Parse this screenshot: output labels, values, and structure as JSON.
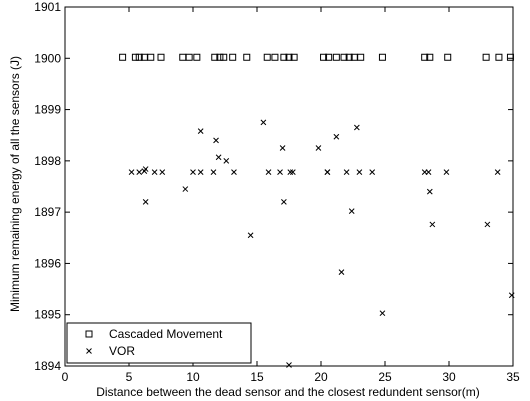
{
  "chart_data": {
    "type": "scatter",
    "xlabel": "Distance between the dead sensor and the closest redundent sensor(m)",
    "ylabel": "Minimum remaining energy of all the sensors (J)",
    "xlim": [
      0,
      35
    ],
    "ylim": [
      1894,
      1901
    ],
    "x_ticks": [
      "0",
      "5",
      "10",
      "15",
      "20",
      "25",
      "30",
      "35"
    ],
    "y_ticks": [
      "1894",
      "1895",
      "1896",
      "1897",
      "1898",
      "1899",
      "1900",
      "1901"
    ],
    "grid": false,
    "legend_position": "bottom-left",
    "series": [
      {
        "name": "Cascaded Movement",
        "marker": "square",
        "color": "#000000",
        "points": [
          [
            4.5,
            1900.02
          ],
          [
            5.5,
            1900.02
          ],
          [
            5.8,
            1900.02
          ],
          [
            6.2,
            1900.02
          ],
          [
            6.7,
            1900.02
          ],
          [
            7.5,
            1900.02
          ],
          [
            9.2,
            1900.02
          ],
          [
            9.7,
            1900.02
          ],
          [
            10.3,
            1900.02
          ],
          [
            11.7,
            1900.02
          ],
          [
            12.1,
            1900.02
          ],
          [
            12.4,
            1900.02
          ],
          [
            13.1,
            1900.02
          ],
          [
            14.2,
            1900.02
          ],
          [
            15.8,
            1900.02
          ],
          [
            16.4,
            1900.02
          ],
          [
            17.1,
            1900.02
          ],
          [
            17.5,
            1900.02
          ],
          [
            17.9,
            1900.02
          ],
          [
            20.2,
            1900.02
          ],
          [
            20.6,
            1900.02
          ],
          [
            21.2,
            1900.02
          ],
          [
            21.8,
            1900.02
          ],
          [
            22.2,
            1900.02
          ],
          [
            22.6,
            1900.02
          ],
          [
            23.1,
            1900.02
          ],
          [
            24.8,
            1900.02
          ],
          [
            28.1,
            1900.02
          ],
          [
            28.5,
            1900.02
          ],
          [
            29.9,
            1900.02
          ],
          [
            32.9,
            1900.02
          ],
          [
            33.9,
            1900.02
          ],
          [
            34.8,
            1900.02
          ]
        ]
      },
      {
        "name": "VOR",
        "marker": "x",
        "color": "#000000",
        "points": [
          [
            5.2,
            1897.78
          ],
          [
            5.8,
            1897.78
          ],
          [
            6.2,
            1897.8
          ],
          [
            6.3,
            1897.84
          ],
          [
            6.3,
            1897.2
          ],
          [
            7.0,
            1897.78
          ],
          [
            7.6,
            1897.78
          ],
          [
            9.4,
            1897.45
          ],
          [
            10.0,
            1897.78
          ],
          [
            10.6,
            1898.58
          ],
          [
            10.6,
            1897.78
          ],
          [
            11.6,
            1897.78
          ],
          [
            11.8,
            1898.4
          ],
          [
            12.0,
            1898.07
          ],
          [
            12.6,
            1898.0
          ],
          [
            13.2,
            1897.78
          ],
          [
            14.5,
            1896.55
          ],
          [
            15.5,
            1898.75
          ],
          [
            15.9,
            1897.78
          ],
          [
            16.8,
            1897.78
          ],
          [
            17.0,
            1898.25
          ],
          [
            17.1,
            1897.2
          ],
          [
            17.5,
            1894.02
          ],
          [
            17.6,
            1897.78
          ],
          [
            17.8,
            1897.78
          ],
          [
            19.8,
            1898.25
          ],
          [
            20.5,
            1897.78
          ],
          [
            20.5,
            1897.78
          ],
          [
            21.2,
            1898.47
          ],
          [
            21.6,
            1895.83
          ],
          [
            22.0,
            1897.78
          ],
          [
            22.4,
            1897.02
          ],
          [
            22.8,
            1898.65
          ],
          [
            23.0,
            1897.78
          ],
          [
            24.0,
            1897.78
          ],
          [
            24.8,
            1895.03
          ],
          [
            28.1,
            1897.78
          ],
          [
            28.4,
            1897.78
          ],
          [
            28.5,
            1897.4
          ],
          [
            28.7,
            1896.76
          ],
          [
            29.8,
            1897.78
          ],
          [
            33.0,
            1896.76
          ],
          [
            33.8,
            1897.78
          ],
          [
            34.9,
            1895.38
          ]
        ]
      }
    ]
  }
}
